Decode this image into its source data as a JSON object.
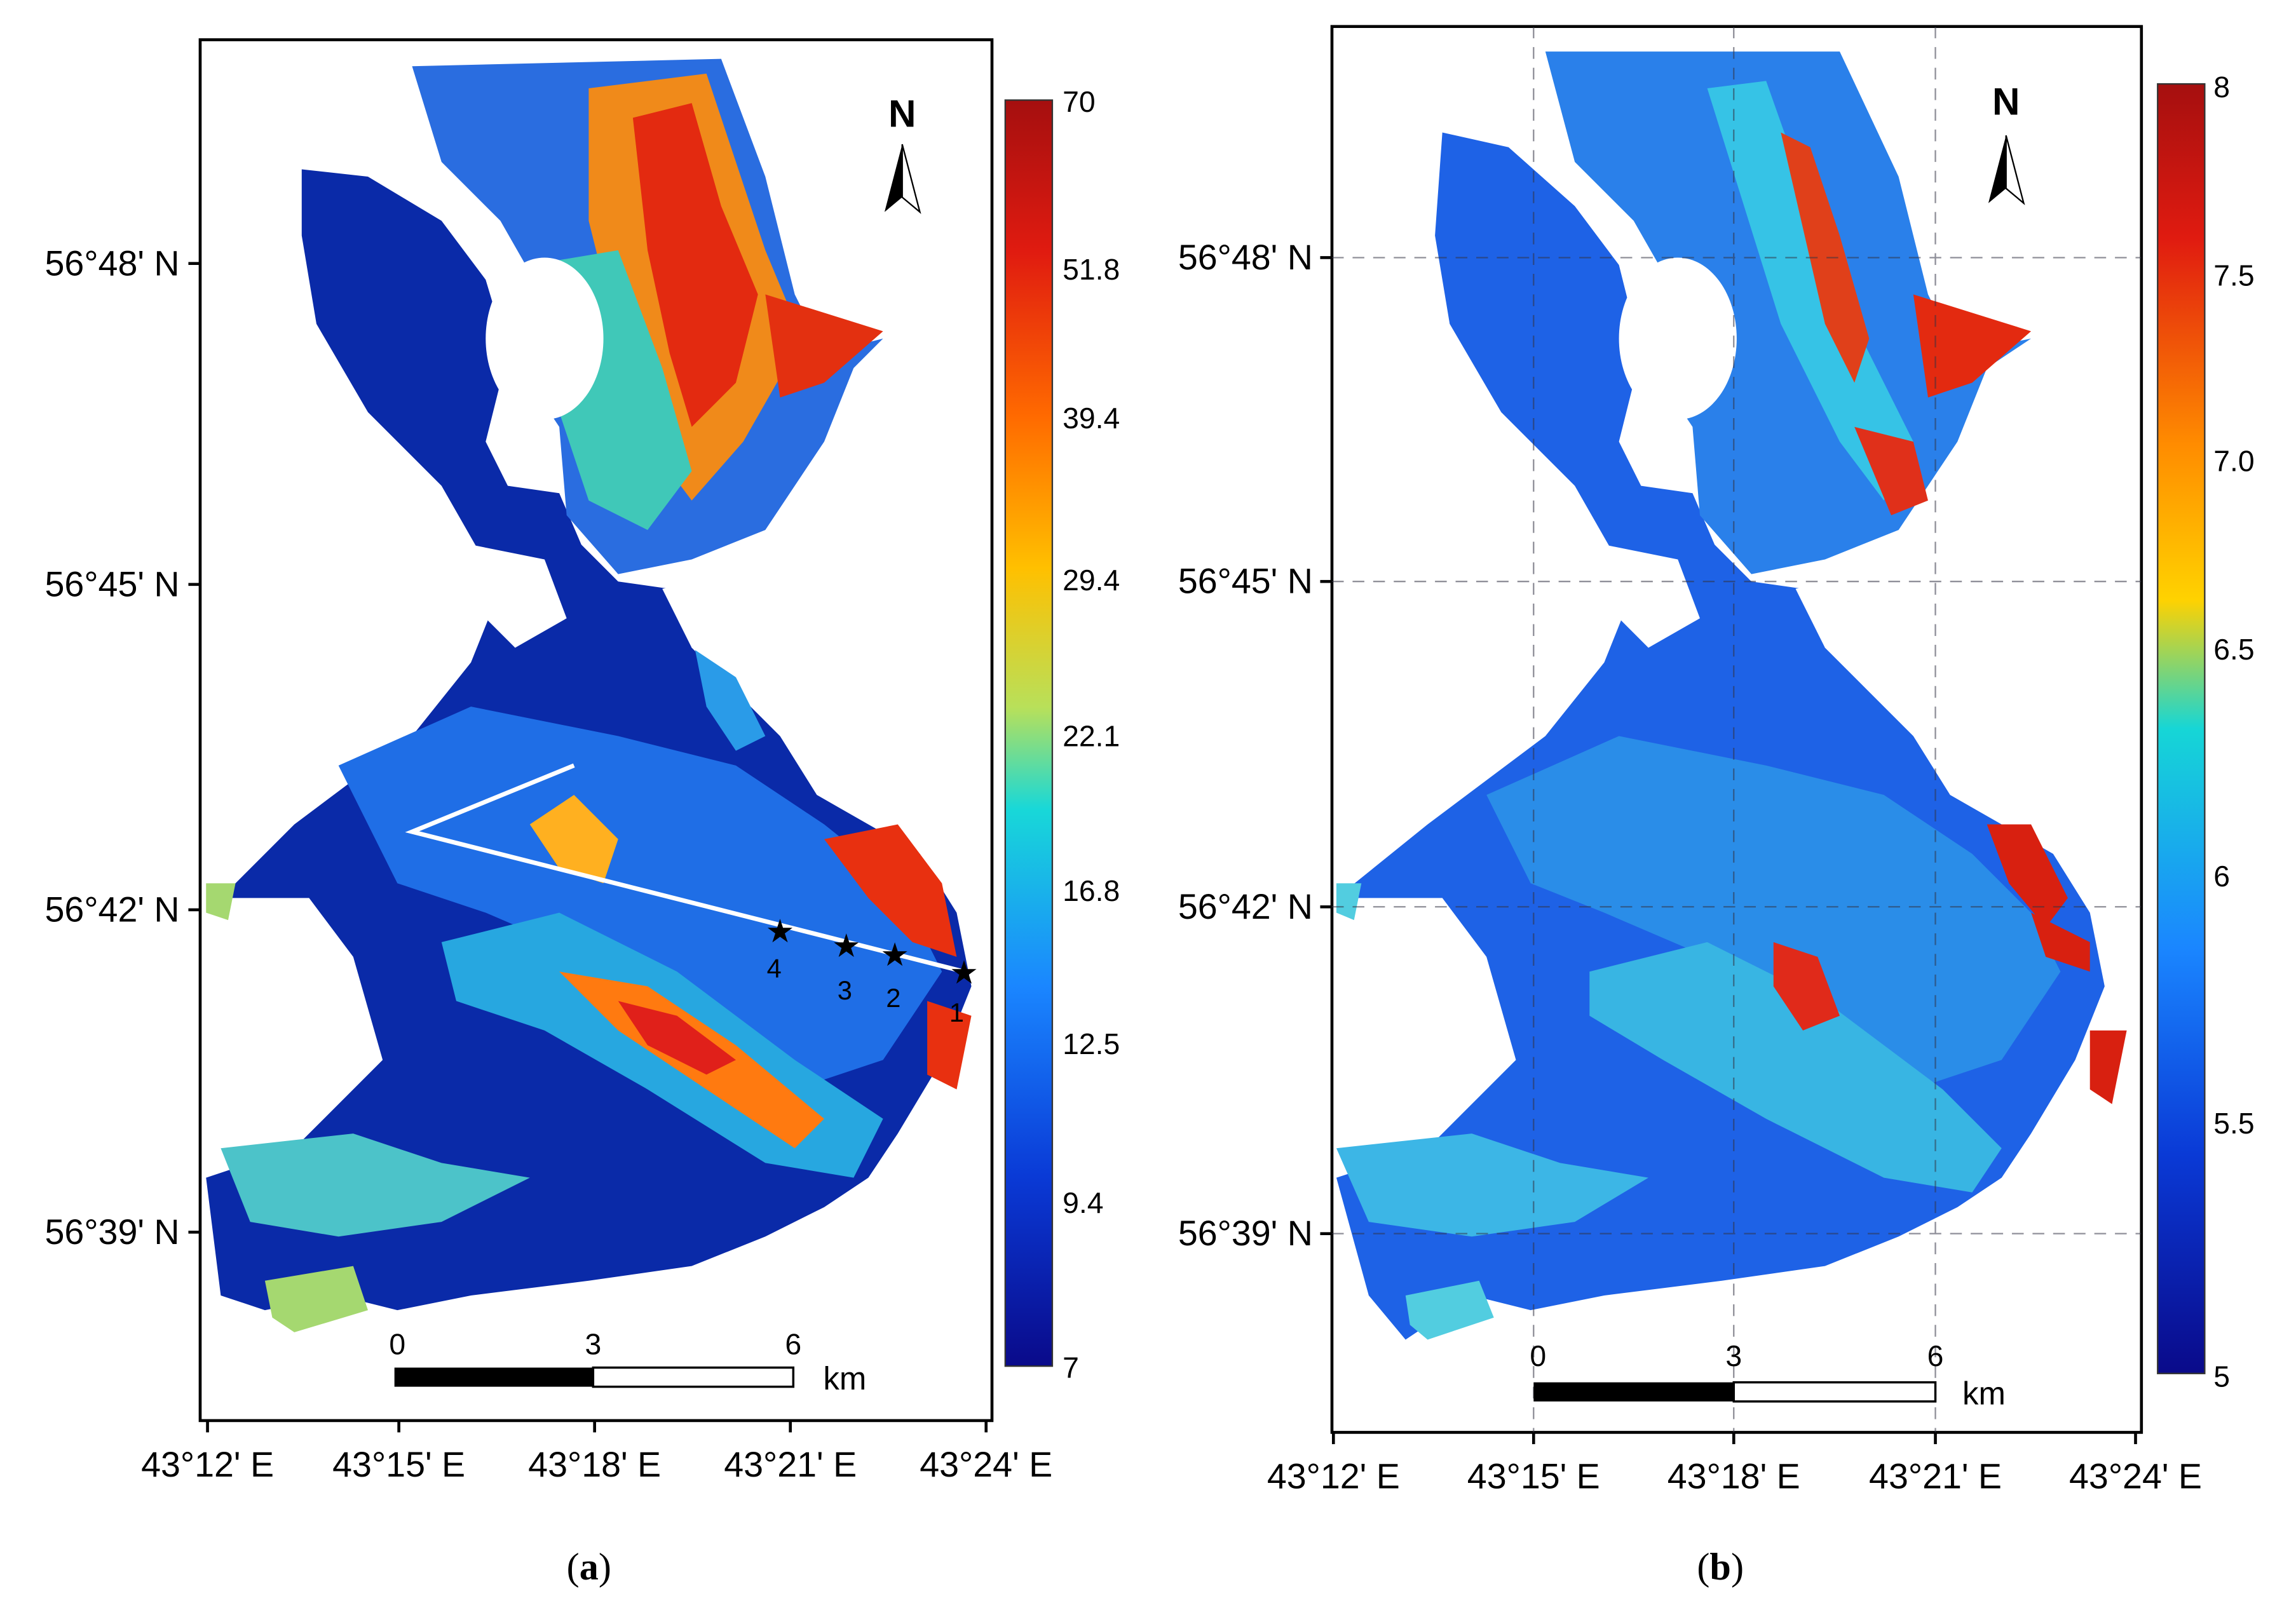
{
  "panels": [
    {
      "id": "a",
      "caption_open": "(",
      "caption_letter": "a",
      "caption_close": ")",
      "north_label": "N",
      "colorbar": {
        "ticks": [
          "70",
          "51.8",
          "39.4",
          "29.4",
          "22.1",
          "16.8",
          "12.5",
          "9.4",
          "7"
        ],
        "colors": [
          "#a50f0f",
          "#e01b10",
          "#ff6a00",
          "#ffc000",
          "#b8e05a",
          "#18d8d8",
          "#1a86ff",
          "#0a3ad6",
          "#0a0a8a"
        ]
      },
      "lat_labels": [
        "56°48' N",
        "56°45' N",
        "56°42' N",
        "56°39' N"
      ],
      "lon_labels": [
        "43°12' E",
        "43°15' E",
        "43°18' E",
        "43°21' E",
        "43°24' E"
      ],
      "scalebar": {
        "ticks": [
          "0",
          "3",
          "6"
        ],
        "unit": "km"
      },
      "stations": [
        "1",
        "2",
        "3",
        "4"
      ]
    },
    {
      "id": "b",
      "caption_open": "(",
      "caption_letter": "b",
      "caption_close": ")",
      "north_label": "N",
      "colorbar": {
        "ticks": [
          "8",
          "7.5",
          "7.0",
          "6.5",
          "6",
          "5.5",
          "5"
        ],
        "colors": [
          "#a50f0f",
          "#e01b10",
          "#ff8c00",
          "#ffd200",
          "#16d6d6",
          "#1a86ff",
          "#0a3ad6",
          "#0a0a8a"
        ]
      },
      "lat_labels": [
        "56°48' N",
        "56°45' N",
        "56°42' N",
        "56°39' N"
      ],
      "lon_labels": [
        "43°12' E",
        "43°15' E",
        "43°18' E",
        "43°21' E",
        "43°24' E"
      ],
      "scalebar": {
        "ticks": [
          "0",
          "3",
          "6"
        ],
        "unit": "km"
      }
    }
  ]
}
